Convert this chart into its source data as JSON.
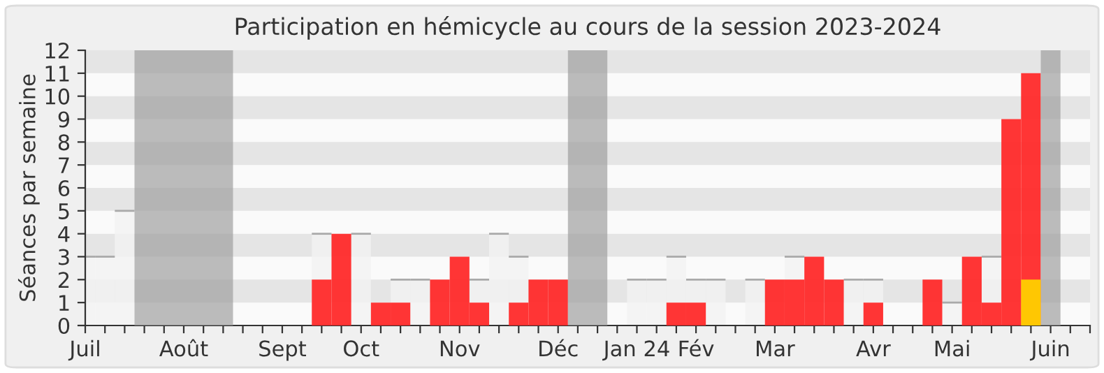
{
  "chart_data": {
    "type": "bar",
    "title": "Participation en hémicycle au cours de la session 2023-2024",
    "ylabel": "Séances par semaine",
    "x": [
      "2023-07-03",
      "2023-07-10",
      "2023-07-17",
      "2023-07-24",
      "2023-07-31",
      "2023-08-07",
      "2023-08-14",
      "2023-08-21",
      "2023-08-28",
      "2023-09-04",
      "2023-09-11",
      "2023-09-18",
      "2023-09-25",
      "2023-10-02",
      "2023-10-09",
      "2023-10-16",
      "2023-10-23",
      "2023-10-30",
      "2023-11-06",
      "2023-11-13",
      "2023-11-20",
      "2023-11-27",
      "2023-12-04",
      "2023-12-11",
      "2023-12-18",
      "2023-12-25",
      "2024-01-01",
      "2024-01-08",
      "2024-01-15",
      "2024-01-22",
      "2024-01-29",
      "2024-02-05",
      "2024-02-12",
      "2024-02-19",
      "2024-02-26",
      "2024-03-04",
      "2024-03-11",
      "2024-03-18",
      "2024-03-25",
      "2024-04-01",
      "2024-04-08",
      "2024-04-15",
      "2024-04-22",
      "2024-04-29",
      "2024-05-06",
      "2024-05-13",
      "2024-05-20",
      "2024-05-27",
      "2024-06-03",
      "2024-06-10",
      "2024-06-17",
      "2024-06-24"
    ],
    "series": [
      {
        "color": "#f2f2f2",
        "values": [
          3,
          3,
          5,
          0,
          0,
          0,
          0,
          0,
          0,
          0,
          0,
          0,
          4,
          null,
          4,
          null,
          2,
          2,
          null,
          null,
          2,
          4,
          3,
          null,
          null,
          0,
          0,
          0,
          2,
          2,
          3,
          2,
          2,
          0,
          2,
          null,
          3,
          null,
          null,
          2,
          2,
          0,
          0,
          null,
          1,
          null,
          3,
          null,
          null,
          0,
          0,
          0
        ]
      },
      {
        "color": "#ff2a2a",
        "values": [
          0,
          0,
          0,
          0,
          0,
          0,
          0,
          0,
          0,
          0,
          0,
          0,
          2,
          4,
          0,
          1,
          1,
          0,
          2,
          3,
          1,
          0,
          1,
          2,
          2,
          0,
          0,
          0,
          0,
          0,
          1,
          1,
          0,
          0,
          0,
          2,
          2,
          3,
          2,
          0,
          1,
          0,
          0,
          2,
          0,
          3,
          1,
          9,
          11,
          0,
          0,
          0
        ]
      },
      {
        "color": "#ffd000",
        "values": [
          0,
          0,
          0,
          0,
          0,
          0,
          0,
          0,
          0,
          0,
          0,
          0,
          0,
          0,
          0,
          0,
          0,
          0,
          0,
          0,
          0,
          0,
          0,
          0,
          0,
          0,
          0,
          0,
          0,
          0,
          0,
          0,
          0,
          0,
          0,
          0,
          0,
          0,
          0,
          0,
          0,
          0,
          0,
          0,
          0,
          0,
          0,
          0,
          2,
          0,
          0,
          0
        ]
      }
    ],
    "bands": [
      {
        "axis": "x",
        "from": "2023-07-20T12:00",
        "to": "2023-08-24T12:00",
        "color": "#a0a0a0"
      },
      {
        "axis": "x",
        "from": "2023-12-21T12:00",
        "to": "2024-01-04T12:00",
        "color": "#a0a0a0"
      },
      {
        "axis": "x",
        "from": "2024-06-06T12:00",
        "to": "2024-06-13T12:00",
        "color": "#a0a0a0"
      }
    ],
    "xlim": [
      "2023-07-03",
      "2024-06-24"
    ],
    "xticks": [
      {
        "value": "2023-07-03",
        "label": "Juil"
      },
      {
        "value": "2023-07-10",
        "label": null
      },
      {
        "value": "2023-07-17",
        "label": null
      },
      {
        "value": "2023-07-24",
        "label": null
      },
      {
        "value": "2023-07-31",
        "label": null
      },
      {
        "value": "2023-08-07",
        "label": "Août"
      },
      {
        "value": "2023-08-14",
        "label": null
      },
      {
        "value": "2023-08-21",
        "label": null
      },
      {
        "value": "2023-08-28",
        "label": null
      },
      {
        "value": "2023-09-04",
        "label": null
      },
      {
        "value": "2023-09-11",
        "label": "Sept"
      },
      {
        "value": "2023-09-18",
        "label": null
      },
      {
        "value": "2023-09-25",
        "label": null
      },
      {
        "value": "2023-10-02",
        "label": null
      },
      {
        "value": "2023-10-09",
        "label": "Oct"
      },
      {
        "value": "2023-10-16",
        "label": null
      },
      {
        "value": "2023-10-23",
        "label": null
      },
      {
        "value": "2023-10-30",
        "label": null
      },
      {
        "value": "2023-11-06",
        "label": null
      },
      {
        "value": "2023-11-13",
        "label": "Nov"
      },
      {
        "value": "2023-11-20",
        "label": null
      },
      {
        "value": "2023-11-27",
        "label": null
      },
      {
        "value": "2023-12-04",
        "label": null
      },
      {
        "value": "2023-12-11",
        "label": null
      },
      {
        "value": "2023-12-18",
        "label": "Déc"
      },
      {
        "value": "2023-12-25",
        "label": null
      },
      {
        "value": "2024-01-01",
        "label": null
      },
      {
        "value": "2024-01-08",
        "label": null
      },
      {
        "value": "2024-01-15",
        "label": "Jan 24"
      },
      {
        "value": "2024-01-22",
        "label": null
      },
      {
        "value": "2024-01-29",
        "label": null
      },
      {
        "value": "2024-02-05",
        "label": "Fév"
      },
      {
        "value": "2024-02-12",
        "label": null
      },
      {
        "value": "2024-02-19",
        "label": null
      },
      {
        "value": "2024-02-26",
        "label": null
      },
      {
        "value": "2024-03-04",
        "label": "Mar"
      },
      {
        "value": "2024-03-11",
        "label": null
      },
      {
        "value": "2024-03-18",
        "label": null
      },
      {
        "value": "2024-03-25",
        "label": null
      },
      {
        "value": "2024-04-01",
        "label": null
      },
      {
        "value": "2024-04-08",
        "label": "Avr"
      },
      {
        "value": "2024-04-15",
        "label": null
      },
      {
        "value": "2024-04-22",
        "label": null
      },
      {
        "value": "2024-04-29",
        "label": null
      },
      {
        "value": "2024-05-06",
        "label": "Mai"
      },
      {
        "value": "2024-05-13",
        "label": null
      },
      {
        "value": "2024-05-20",
        "label": null
      },
      {
        "value": "2024-05-27",
        "label": null
      },
      {
        "value": "2024-06-03",
        "label": null
      },
      {
        "value": "2024-06-10",
        "label": "Juin"
      },
      {
        "value": "2024-06-17",
        "label": null
      },
      {
        "value": "2024-06-24",
        "label": null
      }
    ],
    "ylim": [
      0,
      12
    ],
    "yticks": [
      0,
      1,
      2,
      3,
      4,
      5,
      6,
      7,
      8,
      9,
      10,
      11,
      12
    ]
  }
}
